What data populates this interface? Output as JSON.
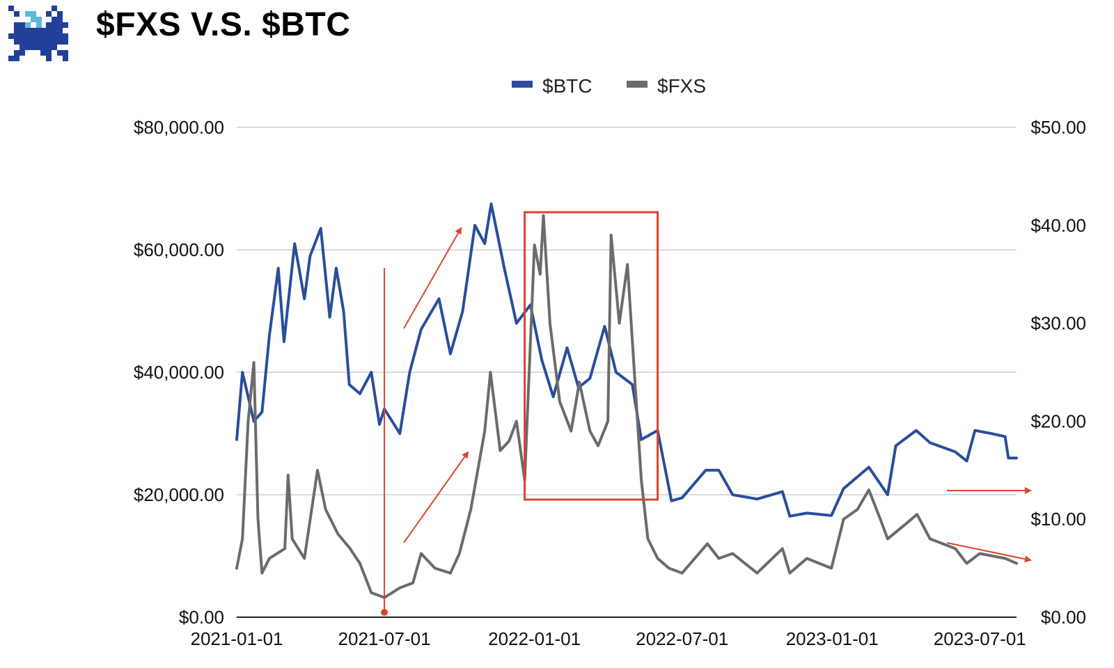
{
  "header": {
    "title": "$FXS V.S. $BTC",
    "logo_icon": "frax-pixel-creature-logo"
  },
  "chart_data": {
    "type": "line",
    "title": "$FXS V.S. $BTC",
    "xlabel": "",
    "ylabel_left": "",
    "ylabel_right": "",
    "x_tick_labels": [
      "2021-01-01",
      "2021-07-01",
      "2022-01-01",
      "2022-07-01",
      "2023-01-01",
      "2023-07-01"
    ],
    "y_left_tick_labels": [
      "$0.00",
      "$20,000.00",
      "$40,000.00",
      "$60,000.00",
      "$80,000.00"
    ],
    "y_right_tick_labels": [
      "$0.00",
      "$10.00",
      "$20.00",
      "$30.00",
      "$40.00",
      "$50.00"
    ],
    "y_left_range": [
      0,
      80000
    ],
    "y_right_range": [
      0,
      50
    ],
    "x_range": [
      "2021-01-01",
      "2023-08-15"
    ],
    "grid": true,
    "legend_position": "top-center",
    "legend": [
      "$BTC",
      "$FXS"
    ],
    "series": [
      {
        "name": "$BTC",
        "axis": "left",
        "color": "#2a4d9c",
        "points": [
          [
            "2021-01-01",
            29000
          ],
          [
            "2021-01-08",
            40000
          ],
          [
            "2021-01-22",
            32000
          ],
          [
            "2021-02-01",
            33500
          ],
          [
            "2021-02-10",
            46000
          ],
          [
            "2021-02-21",
            57000
          ],
          [
            "2021-02-28",
            45000
          ],
          [
            "2021-03-13",
            61000
          ],
          [
            "2021-03-25",
            52000
          ],
          [
            "2021-04-01",
            59000
          ],
          [
            "2021-04-14",
            63500
          ],
          [
            "2021-04-25",
            49000
          ],
          [
            "2021-05-03",
            57000
          ],
          [
            "2021-05-12",
            50000
          ],
          [
            "2021-05-19",
            38000
          ],
          [
            "2021-06-01",
            36500
          ],
          [
            "2021-06-15",
            40000
          ],
          [
            "2021-06-25",
            31500
          ],
          [
            "2021-07-01",
            34000
          ],
          [
            "2021-07-20",
            30000
          ],
          [
            "2021-08-01",
            40000
          ],
          [
            "2021-08-15",
            47000
          ],
          [
            "2021-09-06",
            52000
          ],
          [
            "2021-09-20",
            43000
          ],
          [
            "2021-10-05",
            50000
          ],
          [
            "2021-10-20",
            64000
          ],
          [
            "2021-11-01",
            61000
          ],
          [
            "2021-11-09",
            67500
          ],
          [
            "2021-11-25",
            57000
          ],
          [
            "2021-12-10",
            48000
          ],
          [
            "2021-12-27",
            51000
          ],
          [
            "2022-01-10",
            42000
          ],
          [
            "2022-01-24",
            36000
          ],
          [
            "2022-02-10",
            44000
          ],
          [
            "2022-02-24",
            37500
          ],
          [
            "2022-03-10",
            39000
          ],
          [
            "2022-03-28",
            47500
          ],
          [
            "2022-04-11",
            40000
          ],
          [
            "2022-05-01",
            38000
          ],
          [
            "2022-05-12",
            29000
          ],
          [
            "2022-06-01",
            30500
          ],
          [
            "2022-06-18",
            19000
          ],
          [
            "2022-07-01",
            19500
          ],
          [
            "2022-07-30",
            24000
          ],
          [
            "2022-08-15",
            24000
          ],
          [
            "2022-09-01",
            20000
          ],
          [
            "2022-10-01",
            19300
          ],
          [
            "2022-11-01",
            20500
          ],
          [
            "2022-11-10",
            16500
          ],
          [
            "2022-12-01",
            17000
          ],
          [
            "2022-12-31",
            16600
          ],
          [
            "2023-01-15",
            21000
          ],
          [
            "2023-02-15",
            24500
          ],
          [
            "2023-03-10",
            20000
          ],
          [
            "2023-03-20",
            28000
          ],
          [
            "2023-04-14",
            30500
          ],
          [
            "2023-05-01",
            28500
          ],
          [
            "2023-06-01",
            27000
          ],
          [
            "2023-06-15",
            25500
          ],
          [
            "2023-06-25",
            30500
          ],
          [
            "2023-07-15",
            30000
          ],
          [
            "2023-08-01",
            29500
          ],
          [
            "2023-08-05",
            26000
          ],
          [
            "2023-08-15",
            26000
          ]
        ]
      },
      {
        "name": "$FXS",
        "axis": "right",
        "color": "#6b6b6b",
        "points": [
          [
            "2021-01-01",
            5
          ],
          [
            "2021-01-08",
            8
          ],
          [
            "2021-01-15",
            20
          ],
          [
            "2021-01-22",
            26
          ],
          [
            "2021-01-27",
            10
          ],
          [
            "2021-02-01",
            4.5
          ],
          [
            "2021-02-10",
            6
          ],
          [
            "2021-03-01",
            7
          ],
          [
            "2021-03-05",
            14.5
          ],
          [
            "2021-03-10",
            8
          ],
          [
            "2021-03-25",
            6
          ],
          [
            "2021-04-10",
            15
          ],
          [
            "2021-04-20",
            11
          ],
          [
            "2021-05-05",
            8.5
          ],
          [
            "2021-05-20",
            7
          ],
          [
            "2021-06-01",
            5.5
          ],
          [
            "2021-06-15",
            2.5
          ],
          [
            "2021-07-01",
            2
          ],
          [
            "2021-07-20",
            3
          ],
          [
            "2021-08-05",
            3.5
          ],
          [
            "2021-08-15",
            6.5
          ],
          [
            "2021-09-01",
            5
          ],
          [
            "2021-09-20",
            4.5
          ],
          [
            "2021-10-01",
            6.5
          ],
          [
            "2021-10-15",
            11
          ],
          [
            "2021-11-01",
            19
          ],
          [
            "2021-11-08",
            25
          ],
          [
            "2021-11-20",
            17
          ],
          [
            "2021-12-01",
            18
          ],
          [
            "2021-12-10",
            20
          ],
          [
            "2021-12-20",
            14
          ],
          [
            "2022-01-01",
            38
          ],
          [
            "2022-01-08",
            35
          ],
          [
            "2022-01-12",
            41
          ],
          [
            "2022-01-20",
            30
          ],
          [
            "2022-02-01",
            22
          ],
          [
            "2022-02-15",
            19
          ],
          [
            "2022-02-25",
            24
          ],
          [
            "2022-03-10",
            19
          ],
          [
            "2022-03-20",
            17.5
          ],
          [
            "2022-04-01",
            20
          ],
          [
            "2022-04-05",
            39
          ],
          [
            "2022-04-15",
            30
          ],
          [
            "2022-04-25",
            36
          ],
          [
            "2022-05-05",
            23
          ],
          [
            "2022-05-12",
            14
          ],
          [
            "2022-05-20",
            8
          ],
          [
            "2022-06-01",
            6
          ],
          [
            "2022-06-15",
            5
          ],
          [
            "2022-07-01",
            4.5
          ],
          [
            "2022-08-01",
            7.5
          ],
          [
            "2022-08-15",
            6
          ],
          [
            "2022-09-01",
            6.5
          ],
          [
            "2022-10-01",
            4.5
          ],
          [
            "2022-11-01",
            7
          ],
          [
            "2022-11-10",
            4.5
          ],
          [
            "2022-12-01",
            6
          ],
          [
            "2022-12-31",
            5
          ],
          [
            "2023-01-15",
            10
          ],
          [
            "2023-02-01",
            11
          ],
          [
            "2023-02-15",
            13
          ],
          [
            "2023-03-01",
            10
          ],
          [
            "2023-03-10",
            8
          ],
          [
            "2023-04-01",
            9.5
          ],
          [
            "2023-04-15",
            10.5
          ],
          [
            "2023-05-01",
            8
          ],
          [
            "2023-06-01",
            7
          ],
          [
            "2023-06-15",
            5.5
          ],
          [
            "2023-07-01",
            6.5
          ],
          [
            "2023-08-01",
            6
          ],
          [
            "2023-08-15",
            5.5
          ]
        ]
      }
    ],
    "annotations": [
      {
        "type": "vertical-line",
        "x": "2021-07-01",
        "color": "#d9442f"
      },
      {
        "type": "arrow",
        "color": "#d9442f",
        "note": "BTC rise"
      },
      {
        "type": "arrow",
        "color": "#d9442f",
        "note": "FXS rise"
      },
      {
        "type": "rectangle",
        "x_start": "2021-12-20",
        "x_end": "2022-06-01",
        "color": "#d9442f"
      },
      {
        "type": "arrow",
        "color": "#d9442f",
        "note": "BTC flat"
      },
      {
        "type": "arrow",
        "color": "#d9442f",
        "note": "FXS decline"
      }
    ]
  }
}
